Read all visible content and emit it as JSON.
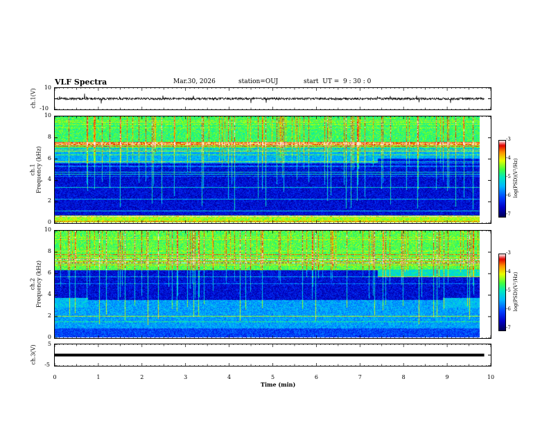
{
  "header": {
    "title": "VLF Spectra",
    "date": "Mar.30, 2026",
    "station": "station=OUJ",
    "start_ut": "start  UT =  9 : 30 : 0"
  },
  "colors": {
    "waveform": "#111111",
    "background": "#ffffff",
    "colorscale": [
      "#000000",
      "#0000c8",
      "#0040ff",
      "#00b8ff",
      "#00e8c0",
      "#40ff40",
      "#e8ff00",
      "#ff9000",
      "#e00000",
      "#ffffff"
    ]
  },
  "chart_data": [
    {
      "type": "line",
      "panel": "ch1-waveform",
      "ylabel": "ch.1(V)",
      "ylim": [
        -10,
        10
      ],
      "ytick_labels": [
        "10",
        "-10"
      ],
      "xlim": [
        0,
        10
      ],
      "approx_level": 0.0,
      "approx_noise_amplitude": 1.0
    },
    {
      "type": "heatmap",
      "panel": "ch1-spectrogram",
      "label_top": "ch.1",
      "ylabel": "Frequency (kHz)",
      "ylim": [
        0,
        10
      ],
      "ytick_labels": [
        "0",
        "2",
        "4",
        "6",
        "8",
        "10"
      ],
      "xlim": [
        0,
        10
      ],
      "data_end_min": 9.85,
      "colorbar": {
        "label": "log(PSD)(V²/Hz)",
        "range": [
          -7,
          -3
        ],
        "tick_labels": [
          "-3",
          "-4",
          "-5",
          "-6",
          "-7"
        ]
      },
      "bands": [
        {
          "fmin": 0.0,
          "fmax": 0.6,
          "level": -4.2
        },
        {
          "fmin": 0.6,
          "fmax": 5.6,
          "level": -6.4
        },
        {
          "fmin": 5.6,
          "fmax": 7.0,
          "level": -5.4
        },
        {
          "fmin": 7.0,
          "fmax": 10.0,
          "level": -4.6
        }
      ],
      "events": [
        {
          "t": 7.4,
          "boundary_shift_khz": 6.0
        }
      ]
    },
    {
      "type": "heatmap",
      "panel": "ch2-spectrogram",
      "label_top": "ch.2",
      "ylabel": "Frequency (kHz)",
      "ylim": [
        0,
        10
      ],
      "ytick_labels": [
        "0",
        "2",
        "4",
        "6",
        "8",
        "10"
      ],
      "xlim": [
        0,
        10
      ],
      "data_end_min": 9.85,
      "colorbar": {
        "label": "log(PSD)(V²/Hz)",
        "range": [
          -7,
          -3
        ],
        "tick_labels": [
          "-3",
          "-4",
          "-5",
          "-6",
          "-7"
        ]
      },
      "bands": [
        {
          "fmin": 0.0,
          "fmax": 0.8,
          "level": -6.0
        },
        {
          "fmin": 0.8,
          "fmax": 3.5,
          "level": -5.5
        },
        {
          "fmin": 3.5,
          "fmax": 6.3,
          "level": -6.4
        },
        {
          "fmin": 6.3,
          "fmax": 10.0,
          "level": -4.5
        }
      ],
      "events": [
        {
          "t": 7.4,
          "band_khz": 6.0,
          "level": -5.0
        },
        {
          "t": 8.9,
          "band_khz": 3.3,
          "level": -5.3
        }
      ]
    },
    {
      "type": "line",
      "panel": "ch3-waveform",
      "ylabel": "ch.3(V)",
      "ylim": [
        -5,
        5
      ],
      "ytick_labels": [
        "5",
        "-5"
      ],
      "xlim": [
        0,
        10
      ],
      "approx_level": 0.0
    },
    {
      "type": "axis",
      "panel": "time-axis",
      "xlabel": "Time (min)",
      "xlim": [
        0,
        10
      ],
      "xtick_labels": [
        "0",
        "1",
        "2",
        "3",
        "4",
        "5",
        "6",
        "7",
        "8",
        "9",
        "10"
      ]
    }
  ]
}
